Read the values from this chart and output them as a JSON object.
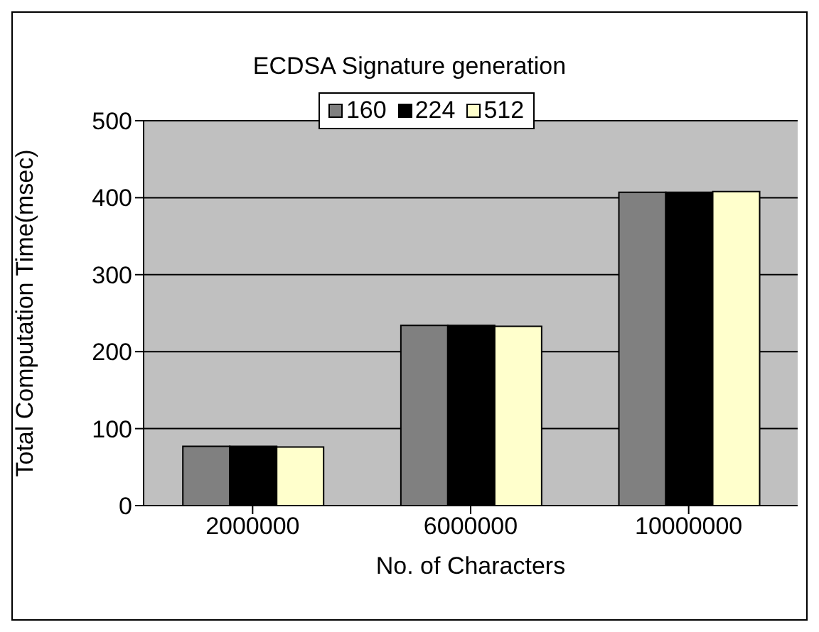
{
  "chart_data": {
    "type": "bar",
    "title": "ECDSA Signature generation",
    "xlabel": "No. of Characters",
    "ylabel": "Total Computation Time(msec)",
    "categories": [
      "2000000",
      "6000000",
      "10000000"
    ],
    "series": [
      {
        "name": "160",
        "color": "#808080",
        "values": [
          77,
          234,
          407
        ]
      },
      {
        "name": "224",
        "color": "#000000",
        "values": [
          77,
          234,
          407
        ]
      },
      {
        "name": "512",
        "color": "#ffffcc",
        "values": [
          76,
          233,
          408
        ]
      }
    ],
    "ylim": [
      0,
      500
    ],
    "yticks": [
      0,
      100,
      200,
      300,
      400,
      500
    ],
    "grid": "y",
    "legend": "top"
  }
}
